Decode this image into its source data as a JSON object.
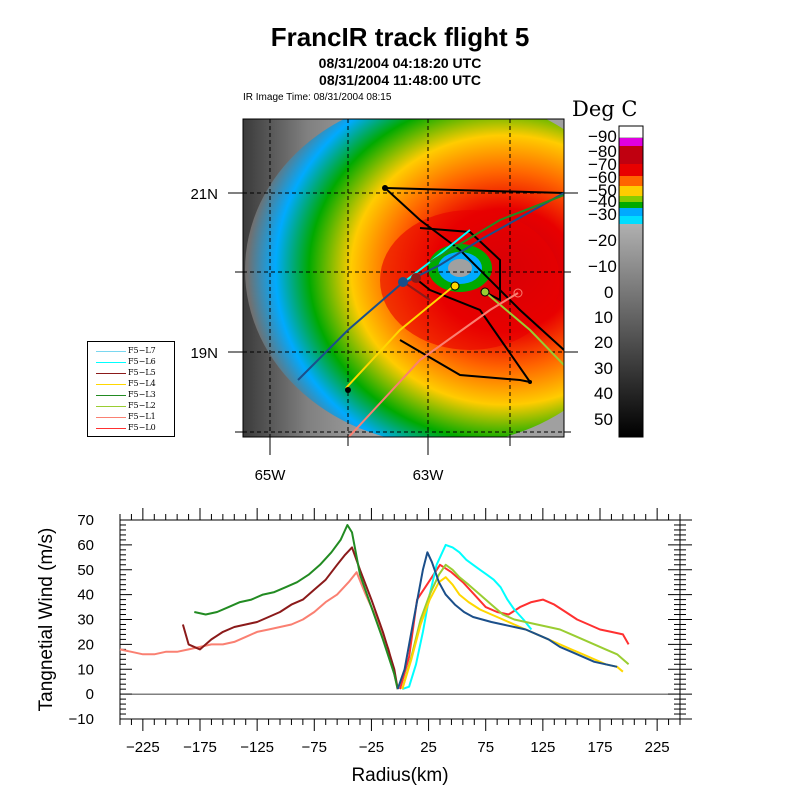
{
  "chart_data": [
    {
      "type": "map",
      "title": "FrancIR track flight 5",
      "subtitle_lines": [
        "08/31/2004 04:18:20 UTC",
        "08/31/2004 11:48:00 UTC"
      ],
      "image_time": "IR Image Time: 08/31/2004 08:15",
      "lon_ticks": [
        "65W",
        "63W"
      ],
      "lat_ticks": [
        "21N",
        "19N"
      ],
      "colorbar": {
        "title": "Deg C",
        "labels": [
          "90",
          "80",
          "70",
          "60",
          "50",
          "40",
          "30",
          "20",
          "10",
          "0",
          "-10",
          "-20",
          "-30",
          "-40",
          "-50",
          "-60",
          "-70",
          "-80",
          "-90"
        ],
        "display_labels": [
          "−90",
          "−80",
          "−70",
          "−60",
          "−50",
          "−40",
          "−30",
          "−20",
          "−10",
          "0",
          "10",
          "20",
          "30",
          "40",
          "50"
        ],
        "colors": [
          "#ffffff",
          "#e000e0",
          "#c00010",
          "#e80000",
          "#ff6400",
          "#ffcc00",
          "#00aa00",
          "#00aaff",
          "#909090",
          "#000000"
        ]
      },
      "legend": [
        {
          "name": "F5-L7",
          "color": "#7ad7f0"
        },
        {
          "name": "F5-L6",
          "color": "#00ffff"
        },
        {
          "name": "F5-L5",
          "color": "#8b1a1a"
        },
        {
          "name": "F5-L4",
          "color": "#ffd700"
        },
        {
          "name": "F5-L3",
          "color": "#228b22"
        },
        {
          "name": "F5-L2",
          "color": "#9acd32"
        },
        {
          "name": "F5-L1",
          "color": "#fa8072"
        },
        {
          "name": "F5-L0",
          "color": "#ff3030"
        }
      ]
    },
    {
      "type": "line",
      "xlabel": "Radius(km)",
      "ylabel": "Tangnetial Wind (m/s)",
      "xlim": [
        -245,
        245
      ],
      "ylim": [
        -10,
        70
      ],
      "x_ticks": [
        -225,
        -175,
        -125,
        -75,
        -25,
        25,
        75,
        125,
        175,
        225
      ],
      "y_ticks": [
        -10,
        0,
        10,
        20,
        30,
        40,
        50,
        60,
        70
      ],
      "reference_line_y": 0,
      "series": [
        {
          "color": "#fa8072",
          "x": [
            -245,
            -235,
            -225,
            -215,
            -205,
            -195,
            -185,
            -175,
            -165,
            -155,
            -145,
            -135,
            -125,
            -115,
            -105,
            -95,
            -85,
            -75,
            -65,
            -55,
            -45,
            -38,
            -30,
            -20,
            -10,
            -2
          ],
          "y": [
            18,
            17,
            16,
            16,
            17,
            17,
            18,
            19,
            20,
            20,
            21,
            23,
            25,
            26,
            27,
            28,
            30,
            33,
            37,
            40,
            45,
            49,
            40,
            30,
            18,
            2
          ]
        },
        {
          "color": "#8b1a1a",
          "x": [
            -190,
            -185,
            -175,
            -165,
            -155,
            -145,
            -135,
            -125,
            -115,
            -105,
            -95,
            -85,
            -75,
            -65,
            -55,
            -48,
            -42,
            -35,
            -25,
            -15,
            -5,
            -2
          ],
          "y": [
            28,
            20,
            18,
            22,
            25,
            27,
            28,
            29,
            31,
            33,
            36,
            38,
            42,
            46,
            52,
            56,
            59,
            50,
            38,
            25,
            10,
            2
          ]
        },
        {
          "color": "#228b22",
          "x": [
            -180,
            -170,
            -160,
            -150,
            -140,
            -130,
            -120,
            -110,
            -100,
            -90,
            -80,
            -70,
            -60,
            -52,
            -46,
            -42,
            -35,
            -25,
            -15,
            -5,
            -2
          ],
          "y": [
            33,
            32,
            33,
            35,
            37,
            38,
            40,
            41,
            43,
            45,
            48,
            52,
            57,
            62,
            68,
            65,
            48,
            35,
            22,
            8,
            2
          ]
        },
        {
          "color": "#ff3030",
          "x": [
            0,
            8,
            15,
            25,
            35,
            45,
            55,
            65,
            75,
            85,
            95,
            105,
            115,
            125,
            135,
            145,
            155,
            165,
            175,
            185,
            195,
            200
          ],
          "y": [
            2,
            15,
            38,
            45,
            52,
            49,
            45,
            40,
            35,
            33,
            32,
            35,
            37,
            38,
            36,
            33,
            30,
            28,
            26,
            25,
            24,
            20
          ]
        },
        {
          "color": "#00ffff",
          "x": [
            2,
            8,
            14,
            20,
            26,
            32,
            40,
            46,
            52,
            58,
            64,
            70,
            76,
            82,
            88,
            94,
            100,
            108,
            115
          ],
          "y": [
            2,
            3,
            12,
            25,
            40,
            52,
            60,
            59,
            57,
            54,
            52,
            50,
            48,
            46,
            43,
            38,
            34,
            30,
            26
          ]
        },
        {
          "color": "#9acd32",
          "x": [
            2,
            10,
            18,
            26,
            34,
            40,
            46,
            52,
            60,
            70,
            80,
            90,
            100,
            110,
            120,
            130,
            140,
            150,
            160,
            170,
            180,
            190,
            200
          ],
          "y": [
            2,
            15,
            30,
            40,
            48,
            52,
            50,
            47,
            44,
            40,
            36,
            32,
            30,
            29,
            28,
            27,
            26,
            24,
            22,
            20,
            18,
            16,
            12
          ]
        },
        {
          "color": "#ffd700",
          "x": [
            2,
            10,
            18,
            26,
            34,
            40,
            46,
            52,
            60,
            70,
            80,
            90,
            100,
            110,
            120,
            130,
            140,
            150,
            160,
            170,
            180,
            190,
            195
          ],
          "y": [
            2,
            14,
            28,
            38,
            45,
            47,
            44,
            40,
            37,
            34,
            32,
            30,
            28,
            26,
            24,
            22,
            20,
            18,
            16,
            14,
            12,
            11,
            9
          ]
        },
        {
          "color": "#1b4f8a",
          "x": [
            -2,
            4,
            10,
            16,
            20,
            24,
            28,
            34,
            40,
            48,
            56,
            64,
            72,
            80,
            90,
            100,
            110,
            120,
            130,
            140,
            150,
            160,
            170,
            180,
            190
          ],
          "y": [
            2,
            10,
            25,
            40,
            50,
            57,
            53,
            45,
            40,
            36,
            33,
            31,
            30,
            29,
            28,
            27,
            26,
            24,
            22,
            19,
            17,
            15,
            13,
            12,
            11
          ]
        }
      ]
    }
  ]
}
